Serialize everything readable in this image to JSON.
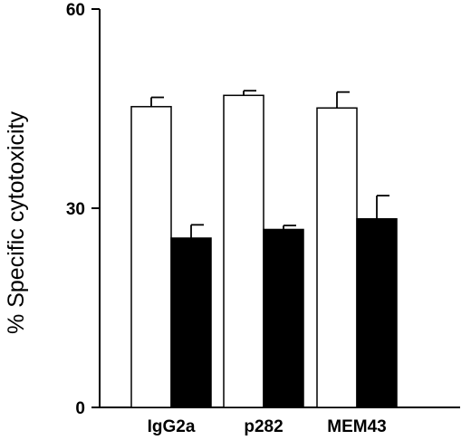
{
  "chart_data": {
    "type": "bar",
    "title": "",
    "xlabel": "",
    "ylabel": "% Specific cytotoxicity",
    "ylim": [
      0,
      60
    ],
    "yticks": [
      0,
      30,
      60
    ],
    "grid": false,
    "categories": [
      "IgG2a",
      "p282",
      "MEM43"
    ],
    "series": [
      {
        "fill": "#ffffff",
        "values": [
          45.3,
          47.0,
          45.1
        ],
        "errors": [
          1.4,
          0.7,
          2.4
        ]
      },
      {
        "fill": "#000000",
        "values": [
          25.5,
          26.8,
          28.4
        ],
        "errors": [
          2.0,
          0.6,
          3.5
        ]
      }
    ]
  }
}
